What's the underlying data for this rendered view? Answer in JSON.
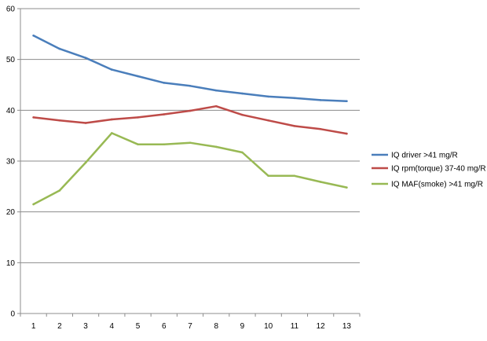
{
  "chart_data": {
    "type": "line",
    "x": [
      1,
      2,
      3,
      4,
      5,
      6,
      7,
      8,
      9,
      10,
      11,
      12,
      13
    ],
    "ylim": [
      0,
      60
    ],
    "yticks": [
      0,
      10,
      20,
      30,
      40,
      50,
      60
    ],
    "grid": true,
    "legend_position": "right",
    "series": [
      {
        "name": "IQ driver >41  mg/R",
        "color": "#4a7ebb",
        "values": [
          54.7,
          52.1,
          50.3,
          48.0,
          46.7,
          45.4,
          44.8,
          43.9,
          43.3,
          42.7,
          42.4,
          42.0,
          41.8
        ]
      },
      {
        "name": "IQ rpm(torque) 37-40  mg/R",
        "color": "#be4b48",
        "values": [
          38.6,
          38.0,
          37.5,
          38.2,
          38.6,
          39.2,
          39.9,
          40.8,
          39.1,
          38.0,
          36.9,
          36.3,
          35.4
        ]
      },
      {
        "name": "IQ MAF(smoke) >41  mg/R",
        "color": "#98b954",
        "values": [
          21.5,
          24.2,
          29.7,
          35.5,
          33.3,
          33.3,
          33.6,
          32.8,
          31.7,
          27.1,
          27.1,
          25.9,
          24.8
        ]
      }
    ]
  }
}
